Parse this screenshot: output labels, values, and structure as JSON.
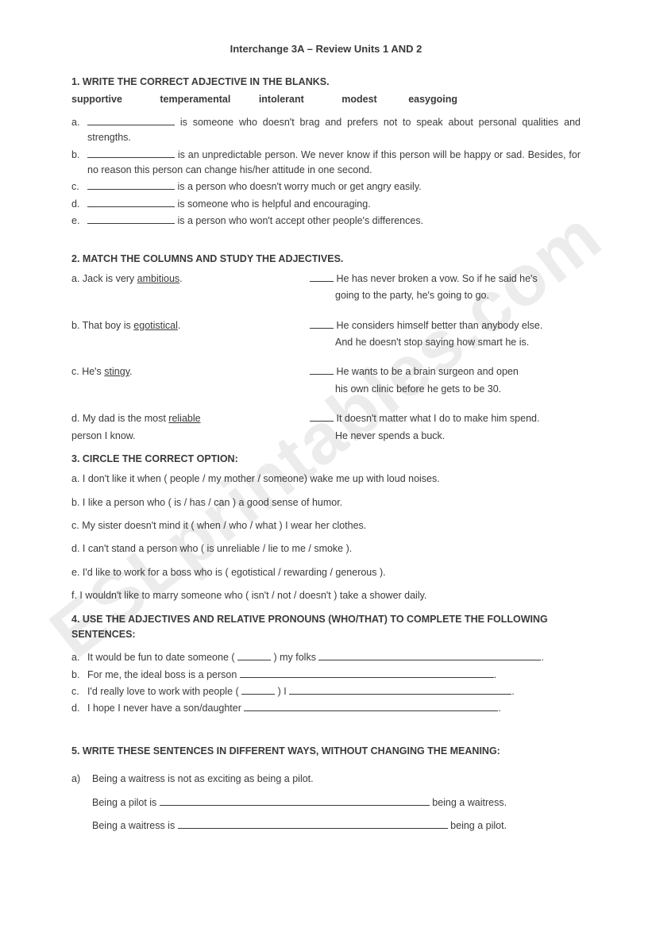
{
  "watermark": "ESLprintables.com",
  "title": "Interchange 3A – Review Units 1 AND 2",
  "q1": {
    "heading": "1.  WRITE THE CORRECT ADJECTIVE IN THE BLANKS.",
    "wordbank": [
      "supportive",
      "temperamental",
      "intolerant",
      "modest",
      "easygoing"
    ],
    "items": [
      {
        "l": "a.",
        "t": " is someone who doesn't brag and prefers not to speak about personal qualities and strengths."
      },
      {
        "l": "b.",
        "t": " is an unpredictable person. We never know if this person will be happy or sad. Besides, for no reason this person can change his/her attitude in one second."
      },
      {
        "l": "c.",
        "t": " is a person who doesn't worry much or get angry easily."
      },
      {
        "l": "d.",
        "t": " is someone who is helpful and encouraging."
      },
      {
        "l": "e.",
        "t": " is a person who won't accept other people's differences."
      }
    ]
  },
  "q2": {
    "heading": "2.  MATCH THE COLUMNS AND STUDY THE ADJECTIVES.",
    "rows": [
      {
        "left_pre": "a. Jack is very ",
        "left_u": "ambitious",
        "left_post": ".",
        "right": " He has never broken a vow. So if he said he's",
        "cont": "going to the party, he's going to go.",
        "gap": true,
        "blank": true
      },
      {
        "left_pre": "b. That boy is ",
        "left_u": "egotistical",
        "left_post": ".",
        "right": "  He  considers  himself  better  than anybody else.",
        "cont": "And he doesn't stop saying how smart he is.",
        "gap": true,
        "blank": true
      },
      {
        "left_pre": "c. He's ",
        "left_u": "stingy",
        "left_post": ".",
        "right": " He wants to be a brain surgeon and open",
        "cont": "his own clinic before he gets to be 30.",
        "gap": true,
        "blank": true
      },
      {
        "left_pre": "d. My dad is the most ",
        "left_u": "reliable",
        "left_post": "",
        "right": " It doesn't matter what I do to make him spend.",
        "cont": "He never spends a buck.",
        "left2": "    person I know.",
        "gap": false,
        "blank": true
      }
    ]
  },
  "q3": {
    "heading": "3. CIRCLE THE CORRECT OPTION:",
    "items": [
      "a. I don't like it when ( people / my mother / someone)   wake me up with loud noises.",
      "b. I like a person who ( is / has / can ) a good sense of humor.",
      "c. My sister doesn't mind it ( when / who / what ) I wear her clothes.",
      "d. I can't stand a person who ( is unreliable / lie to me / smoke ).",
      "e. I'd like to work for a boss who is ( egotistical / rewarding / generous ).",
      "f.   I wouldn't like to marry someone who ( isn't / not / doesn't ) take a shower daily."
    ]
  },
  "q4": {
    "heading": "4. USE THE ADJECTIVES AND RELATIVE PRONOUNS (WHO/THAT) TO COMPLETE THE FOLLOWING SENTENCES:",
    "items": [
      {
        "l": "a.",
        "pre": "  It would be fun to date someone ( ",
        "mid": " ) my folks ",
        "end": "."
      },
      {
        "l": "b.",
        "pre": "For me, the ideal boss is a person ",
        "mid": "",
        "end": "."
      },
      {
        "l": "c.",
        "pre": "I'd really love to work with people ( ",
        "mid": " ) I ",
        "end": "."
      },
      {
        "l": "d.",
        "pre": "I hope I never have a son/daughter ",
        "mid": "",
        "end": "."
      }
    ]
  },
  "q5": {
    "heading": "5. WRITE THESE SENTENCES IN DIFFERENT WAYS, WITHOUT CHANGING THE MEANING:",
    "intro_l": "a)",
    "intro": "Being a waitress is not as exciting as being a pilot.",
    "line1_pre": "Being a pilot is ",
    "line1_post": " being a waitress.",
    "line2_pre": "Being a waitress is ",
    "line2_post": " being a pilot."
  }
}
